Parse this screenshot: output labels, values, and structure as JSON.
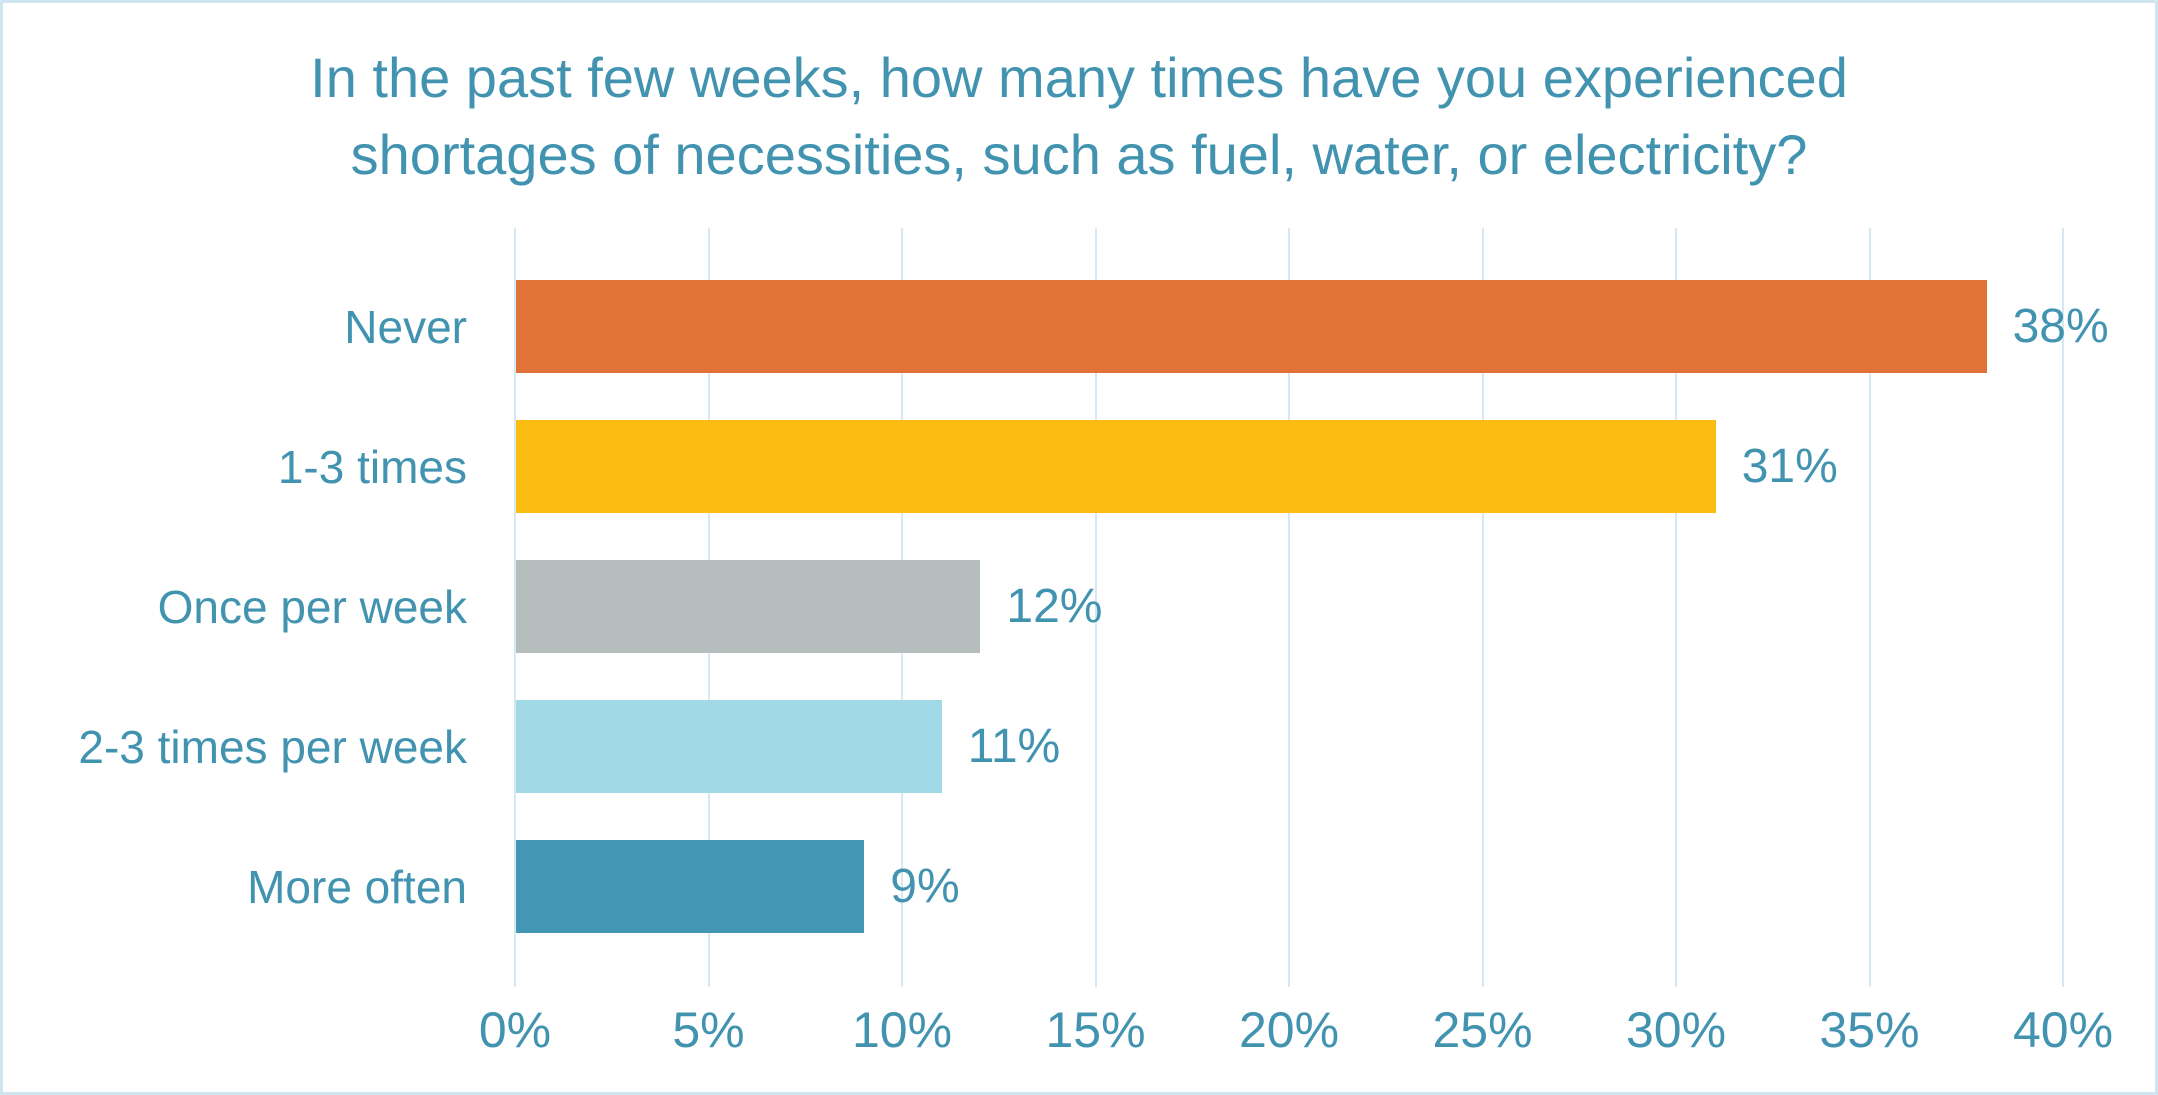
{
  "title_lines": [
    "In the past few weeks, how many times have you experienced",
    "shortages of necessities, such as fuel, water, or electricity?"
  ],
  "chart_data": {
    "type": "bar",
    "orientation": "horizontal",
    "title": "In the past few weeks, how many times have you experienced shortages of necessities, such as fuel, water, or electricity?",
    "categories": [
      "Never",
      "1-3 times",
      "Once per week",
      "2-3 times per week",
      "More often"
    ],
    "values": [
      38,
      31,
      12,
      11,
      9
    ],
    "value_labels": [
      "38%",
      "31%",
      "12%",
      "11%",
      "9%"
    ],
    "bar_colors": [
      "#e17339",
      "#fdbc11",
      "#b6bebd",
      "#a2d9e7",
      "#4397b5"
    ],
    "x_ticks": [
      "0%",
      "5%",
      "10%",
      "15%",
      "20%",
      "25%",
      "30%",
      "35%",
      "40%"
    ],
    "x_tick_values": [
      0,
      5,
      10,
      15,
      20,
      25,
      30,
      35,
      40
    ],
    "xlim": [
      0,
      40
    ],
    "grid": true,
    "legend": false,
    "data_labels": true,
    "text_color": "#4193b0",
    "gridline_color": "#d3e9f3",
    "background_color": "#ffffff",
    "border_color": "#cfe5ef"
  }
}
